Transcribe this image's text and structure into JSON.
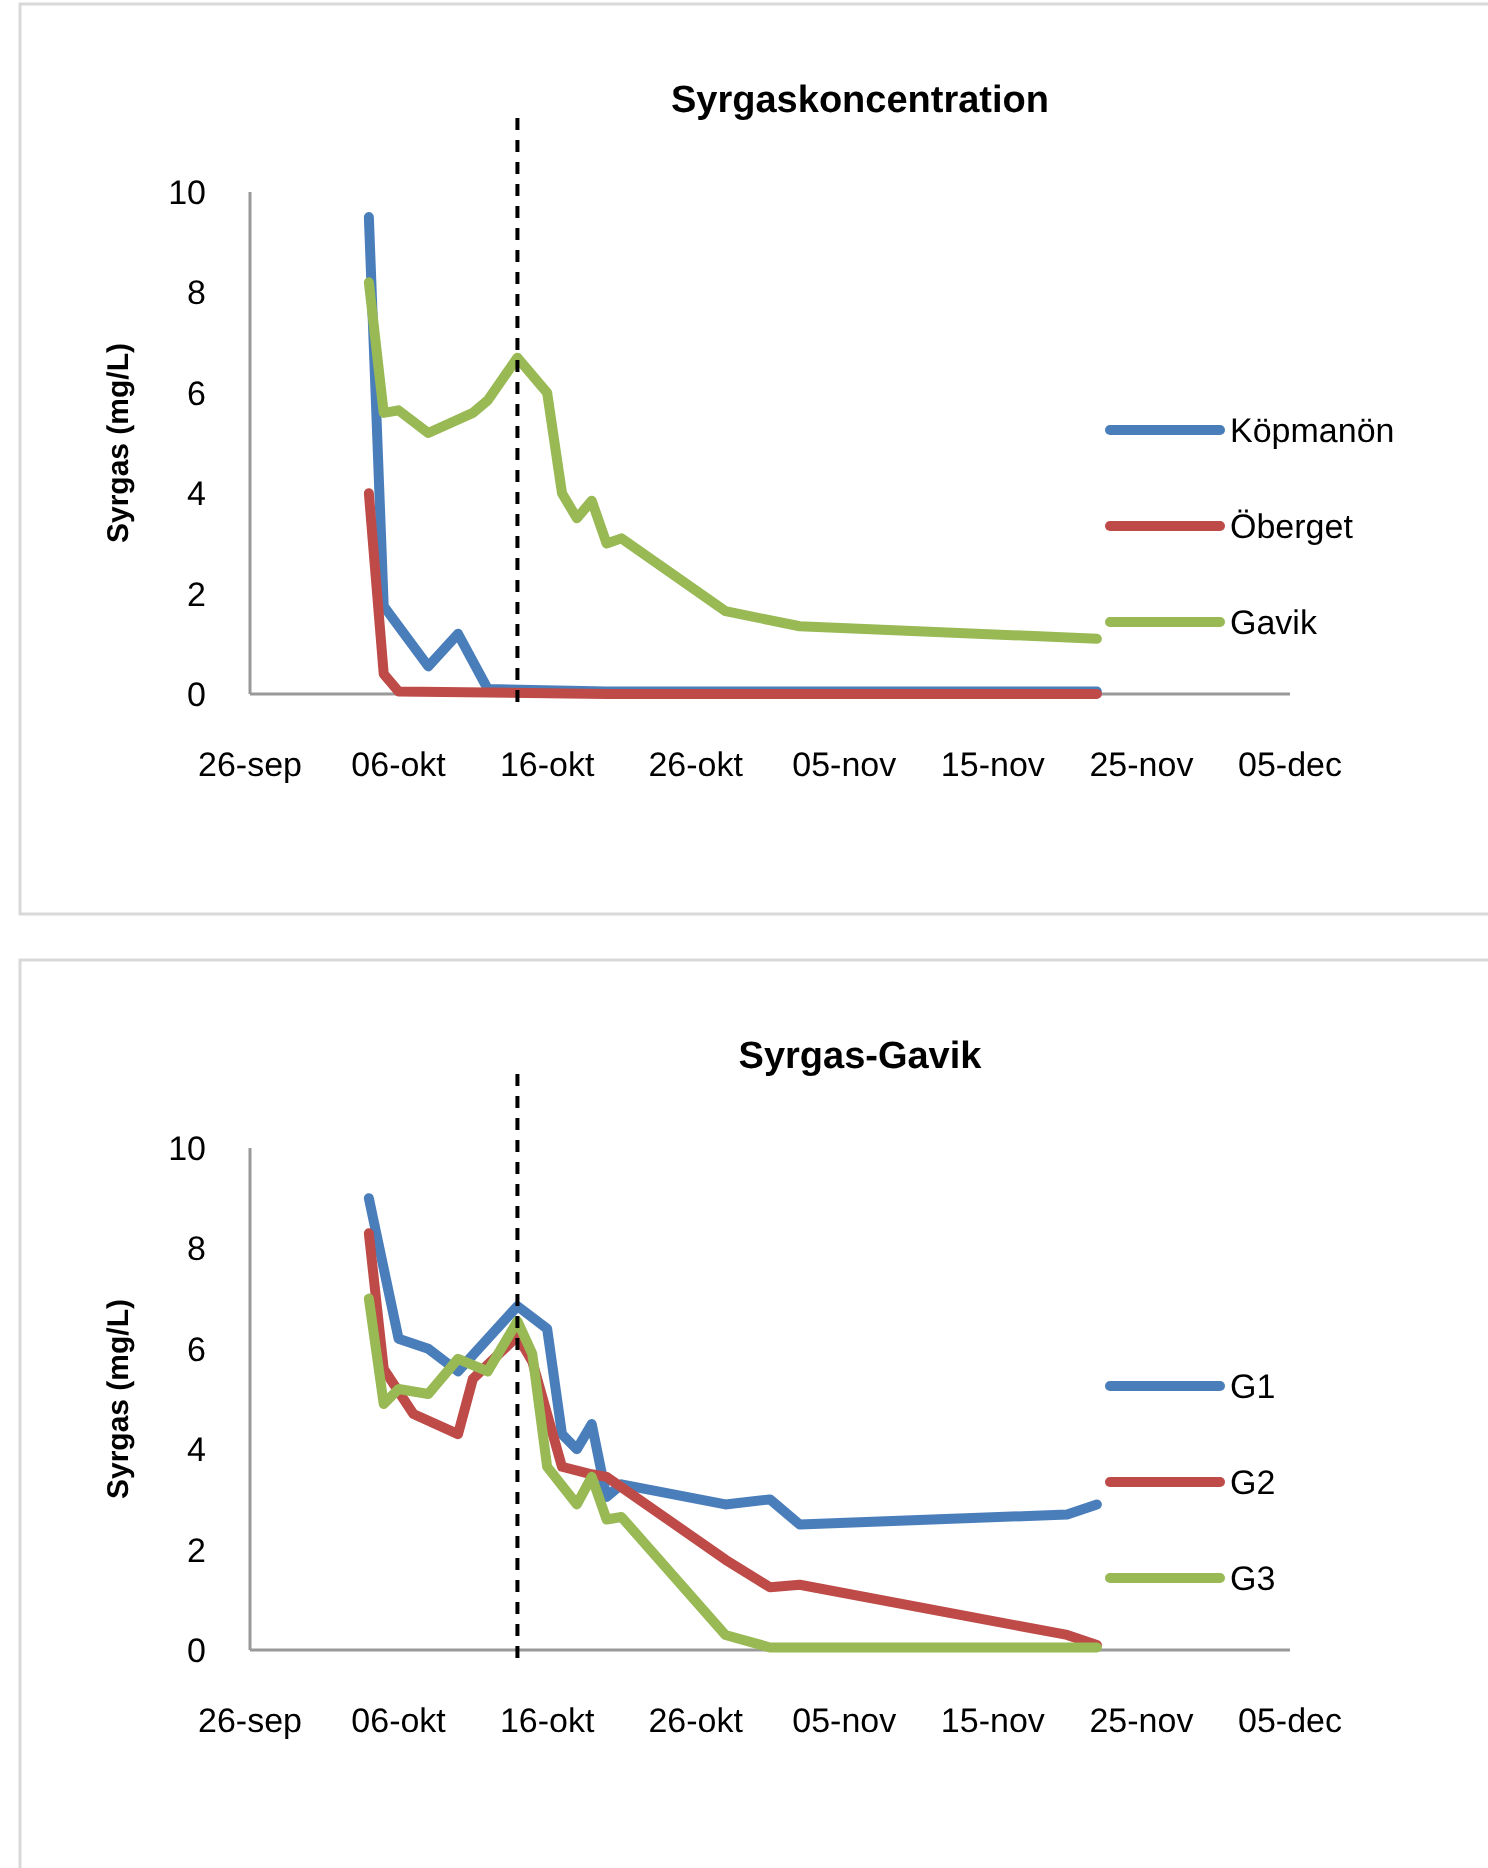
{
  "chart_data": [
    {
      "type": "line",
      "title": "Syrgaskoncentration",
      "ylabel": "Syrgas (mg/L)",
      "xlim": [
        "--09-26",
        "--12-05"
      ],
      "xticks": [
        {
          "value": "--09-26",
          "label": "26-sep"
        },
        {
          "value": "--10-06",
          "label": "06-okt"
        },
        {
          "value": "--10-16",
          "label": "16-okt"
        },
        {
          "value": "--10-26",
          "label": "26-okt"
        },
        {
          "value": "--11-05",
          "label": "05-nov"
        },
        {
          "value": "--11-15",
          "label": "15-nov"
        },
        {
          "value": "--11-25",
          "label": "25-nov"
        },
        {
          "value": "--12-05",
          "label": "05-dec"
        }
      ],
      "ylim": [
        0,
        10
      ],
      "yticks": [
        0,
        2,
        4,
        6,
        8,
        10
      ],
      "legend": "right",
      "ref_lines": [
        {
          "axis": "x",
          "value": "--10-14",
          "color": "#000000",
          "line_style": "dashed"
        }
      ],
      "series": [
        {
          "name": "Köpmanön",
          "color": "#4a7ebb",
          "x": [
            "--10-04",
            "--10-05",
            "--10-08",
            "--10-10",
            "--10-12",
            "--10-20",
            "--11-22"
          ],
          "values": [
            9.5,
            1.75,
            0.55,
            1.2,
            0.1,
            0.05,
            0.05
          ]
        },
        {
          "name": "Öberget",
          "color": "#be4b48",
          "x": [
            "--10-04",
            "--10-05",
            "--10-06",
            "--10-20",
            "--11-22"
          ],
          "values": [
            4.0,
            0.4,
            0.05,
            0,
            0
          ]
        },
        {
          "name": "Gavik",
          "color": "#98b954",
          "x": [
            "--10-04",
            "--10-05",
            "--10-06",
            "--10-08",
            "--10-11",
            "--10-12",
            "--10-14",
            "--10-16",
            "--10-17",
            "--10-18",
            "--10-19",
            "--10-20",
            "--10-21",
            "--10-28",
            "--11-02",
            "--11-22"
          ],
          "values": [
            8.2,
            5.6,
            5.65,
            5.2,
            5.6,
            5.85,
            6.7,
            6.0,
            4.0,
            3.5,
            3.85,
            3.0,
            3.1,
            1.65,
            1.35,
            1.1
          ]
        }
      ]
    },
    {
      "type": "line",
      "title": "Syrgas-Gavik",
      "ylabel": "Syrgas (mg/L)",
      "xlim": [
        "--09-26",
        "--12-05"
      ],
      "xticks": [
        {
          "value": "--09-26",
          "label": "26-sep"
        },
        {
          "value": "--10-06",
          "label": "06-okt"
        },
        {
          "value": "--10-16",
          "label": "16-okt"
        },
        {
          "value": "--10-26",
          "label": "26-okt"
        },
        {
          "value": "--11-05",
          "label": "05-nov"
        },
        {
          "value": "--11-15",
          "label": "15-nov"
        },
        {
          "value": "--11-25",
          "label": "25-nov"
        },
        {
          "value": "--12-05",
          "label": "05-dec"
        }
      ],
      "ylim": [
        0,
        10
      ],
      "yticks": [
        0,
        2,
        4,
        6,
        8,
        10
      ],
      "legend": "right",
      "ref_lines": [
        {
          "axis": "x",
          "value": "--10-14",
          "color": "#000000",
          "line_style": "dashed"
        }
      ],
      "series": [
        {
          "name": "G1",
          "color": "#4a7ebb",
          "x": [
            "--10-04",
            "--10-06",
            "--10-08",
            "--10-10",
            "--10-14",
            "--10-16",
            "--10-17",
            "--10-18",
            "--10-19",
            "--10-20",
            "--10-21",
            "--10-28",
            "--10-31",
            "--11-02",
            "--11-20",
            "--11-22"
          ],
          "values": [
            9.0,
            6.2,
            6.0,
            5.55,
            6.85,
            6.4,
            4.3,
            4.0,
            4.5,
            3.05,
            3.3,
            2.9,
            3.0,
            2.5,
            2.7,
            2.9
          ]
        },
        {
          "name": "G2",
          "color": "#be4b48",
          "x": [
            "--10-04",
            "--10-05",
            "--10-07",
            "--10-10",
            "--10-11",
            "--10-14",
            "--10-15",
            "--10-17",
            "--10-19",
            "--10-20",
            "--10-28",
            "--10-31",
            "--11-02",
            "--11-20",
            "--11-22"
          ],
          "values": [
            8.3,
            5.6,
            4.7,
            4.3,
            5.4,
            6.25,
            5.75,
            3.65,
            3.5,
            3.45,
            1.8,
            1.25,
            1.3,
            0.3,
            0.1
          ]
        },
        {
          "name": "G3",
          "color": "#98b954",
          "x": [
            "--10-04",
            "--10-05",
            "--10-06",
            "--10-08",
            "--10-10",
            "--10-12",
            "--10-14",
            "--10-15",
            "--10-16",
            "--10-18",
            "--10-19",
            "--10-20",
            "--10-21",
            "--10-28",
            "--10-31",
            "--11-22"
          ],
          "values": [
            7.0,
            4.9,
            5.2,
            5.1,
            5.8,
            5.55,
            6.55,
            5.9,
            3.65,
            2.9,
            3.45,
            2.6,
            2.65,
            0.3,
            0.05,
            0.05
          ]
        }
      ]
    }
  ]
}
